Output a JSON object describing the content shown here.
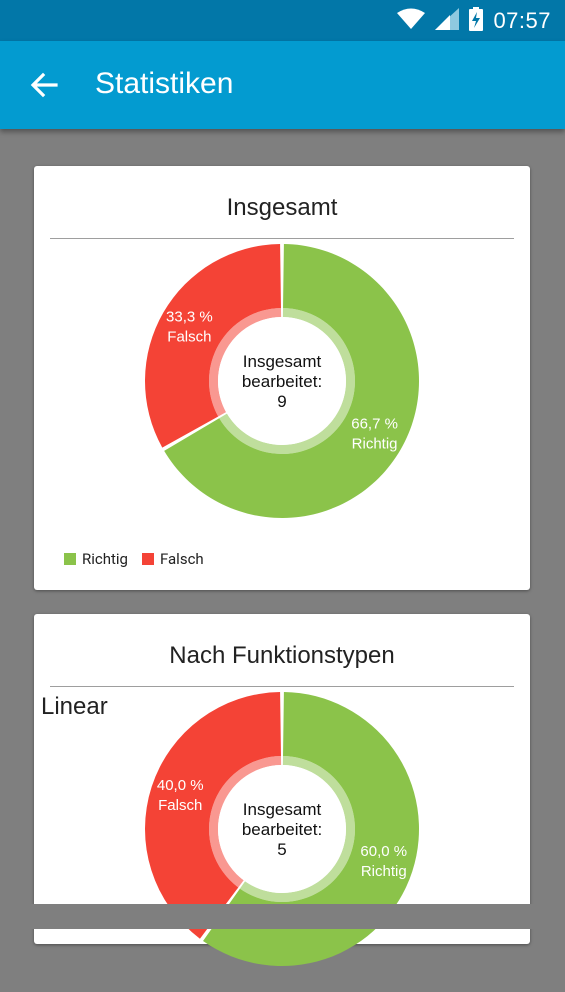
{
  "status_bar": {
    "time": "07:57",
    "icons": [
      "wifi-icon",
      "signal-icon",
      "battery-icon"
    ]
  },
  "app_bar": {
    "title": "Statistiken",
    "back_icon": "arrow-left-icon"
  },
  "colors": {
    "richtig": "#8bc34a",
    "falsch": "#f44336",
    "app_bar": "#039bd0",
    "status_bar": "#0277a8"
  },
  "cards": [
    {
      "title": "Insgesamt",
      "center_lines": [
        "Insgesamt",
        "bearbeitet:",
        "9"
      ],
      "legend": [
        {
          "label": "Richtig",
          "color": "#8bc34a"
        },
        {
          "label": "Falsch",
          "color": "#f44336"
        }
      ]
    },
    {
      "title": "Nach Funktionstypen",
      "section_label": "Linear",
      "center_lines": [
        "Insgesamt",
        "bearbeitet:",
        "5"
      ]
    }
  ],
  "chart_data": [
    {
      "type": "pie",
      "categories": [
        "Richtig",
        "Falsch"
      ],
      "values": [
        66.7,
        33.3
      ],
      "value_labels": [
        "66,7 %",
        "33,3 %"
      ],
      "slice_labels": [
        "Richtig",
        "Falsch"
      ],
      "center_text": [
        "Insgesamt",
        "bearbeitet:",
        "9"
      ]
    },
    {
      "type": "pie",
      "categories": [
        "Richtig",
        "Falsch"
      ],
      "values": [
        60.0,
        40.0
      ],
      "value_labels": [
        "60,0 %",
        "40,0 %"
      ],
      "slice_labels": [
        "Richtig",
        "Falsch"
      ],
      "center_text": [
        "Insgesamt",
        "bearbeitet:",
        "5"
      ]
    }
  ]
}
